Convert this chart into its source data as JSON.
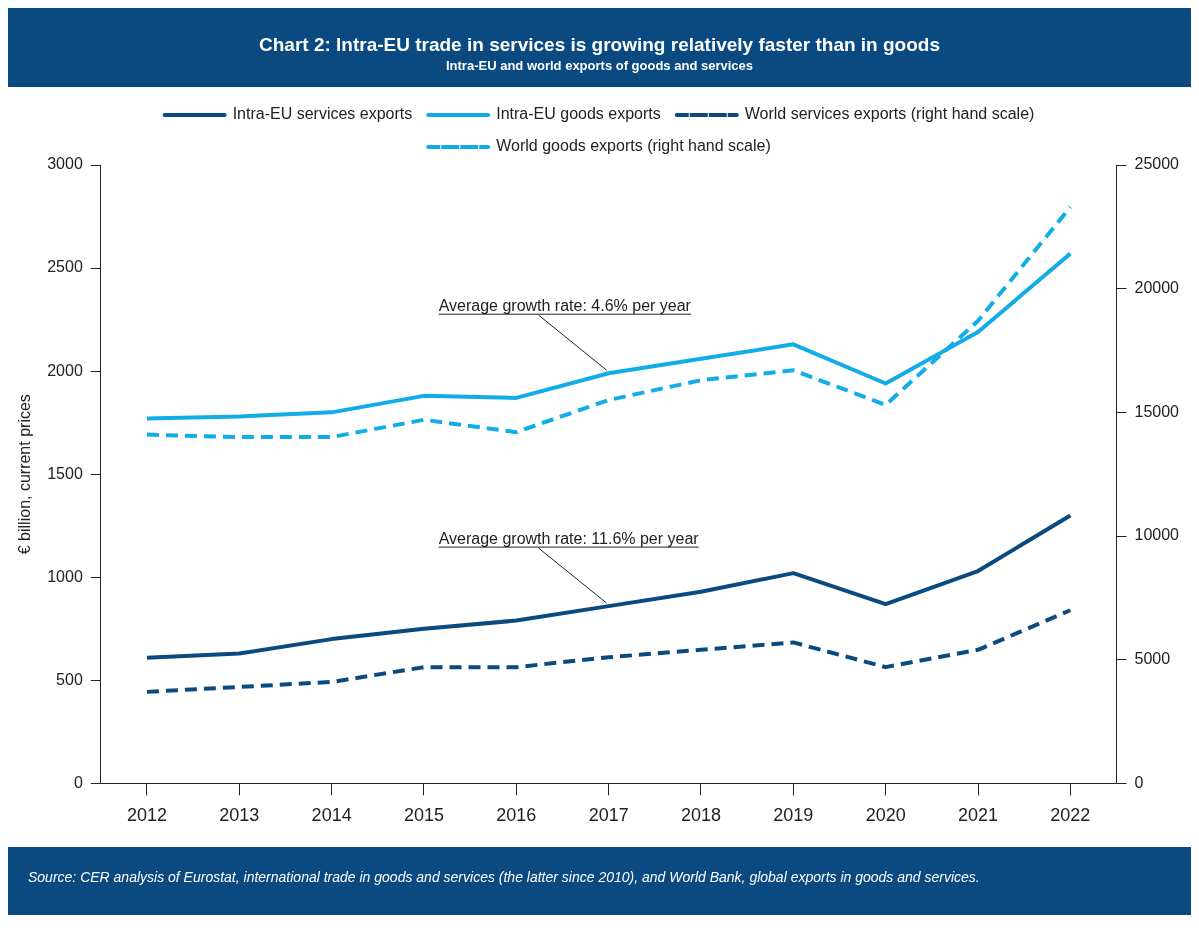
{
  "chart_data": {
    "type": "line",
    "title": "Chart 2: Intra-EU trade in services is growing relatively faster than in goods",
    "subtitle": "Intra-EU and world exports of goods and services",
    "ylabel": "€ billion, current prices",
    "categories": [
      "2012",
      "2013",
      "2014",
      "2015",
      "2016",
      "2017",
      "2018",
      "2019",
      "2020",
      "2021",
      "2022"
    ],
    "series": [
      {
        "name": "Intra-EU services exports",
        "color": "#0b4a7e",
        "line_style": "solid",
        "values": [
          610,
          630,
          700,
          750,
          790,
          860,
          930,
          1020,
          870,
          1030,
          1300
        ]
      },
      {
        "name": "Intra-EU goods exports",
        "color": "#12ade8",
        "line_style": "solid",
        "values": [
          1770,
          1780,
          1800,
          1880,
          1870,
          1990,
          2060,
          2130,
          1940,
          2190,
          2570
        ]
      },
      {
        "name": "World services exports (right hand scale)",
        "color": "#0b4a7e",
        "line_style": "dashed",
        "axis": "y2",
        "values": [
          3700,
          3900,
          4100,
          4700,
          4700,
          5100,
          5400,
          5700,
          4700,
          5400,
          7000
        ]
      },
      {
        "name": "World goods exports (right hand scale)",
        "color": "#12ade8",
        "line_style": "dashed",
        "axis": "y2",
        "values": [
          14100,
          14000,
          14000,
          14700,
          14200,
          15500,
          16300,
          16700,
          15300,
          18700,
          23300
        ]
      }
    ],
    "ylim": [
      0,
      3000
    ],
    "yticks": [
      0,
      500,
      1000,
      1500,
      2000,
      2500,
      3000
    ],
    "y2lim": [
      0,
      25000
    ],
    "y2ticks": [
      0,
      5000,
      10000,
      15000,
      20000,
      25000
    ],
    "legend": "top",
    "marker": "none",
    "annotations": [
      {
        "text": "Average growth rate: 4.6% per year",
        "x": "2017",
        "y": 1990
      },
      {
        "text": "Average growth rate: 11.6% per year",
        "x": "2017",
        "y": 860
      },
      "Source: CER analysis of Eurostat, international trade in goods and services (the latter since 2010), and World Bank, global exports in goods and services."
    ]
  }
}
